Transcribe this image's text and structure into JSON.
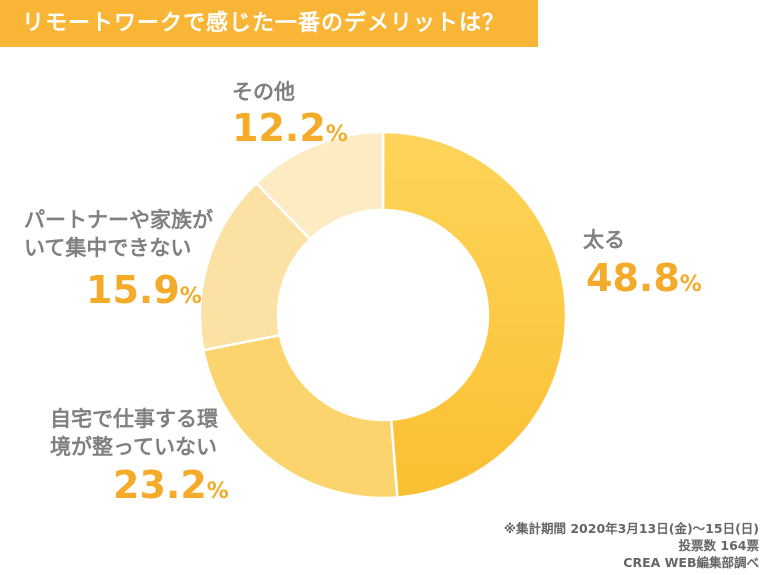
{
  "title": "リモートワークで感じた一番のデメリットは？",
  "chart_data": {
    "type": "pie",
    "donut": true,
    "categories": [
      "太る",
      "自宅で仕事する環境が整っていない",
      "パートナーや家族がいて集中できない",
      "その他"
    ],
    "labels_display": [
      [
        "太る"
      ],
      [
        "自宅で仕事する環",
        "境が整っていない"
      ],
      [
        "パートナーや家族が",
        "いて集中できない"
      ],
      [
        "その他"
      ]
    ],
    "values": [
      48.8,
      23.2,
      15.9,
      12.2
    ],
    "value_labels": [
      "48.8",
      "23.2",
      "15.9",
      "12.2"
    ],
    "unit": "%",
    "colors": [
      "#fdc53c",
      "#fbd46e",
      "#fce1a4",
      "#fdebc4"
    ],
    "legend": "none"
  },
  "notes": [
    "※集計期間 2020年3月13日(金)～15日(日)",
    "投票数 164票",
    "CREA WEB編集部調べ"
  ]
}
